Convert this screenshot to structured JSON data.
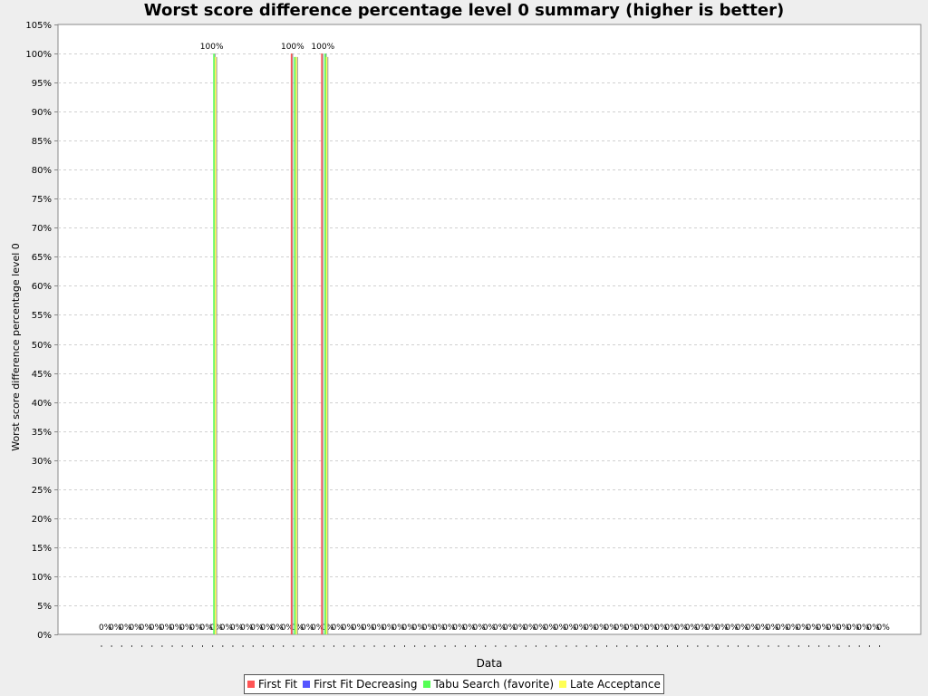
{
  "chart_data": {
    "type": "bar",
    "title": "Worst score difference percentage level 0 summary (higher is better)",
    "xlabel": "Data",
    "ylabel": "Worst score difference percentage level 0",
    "ylim": [
      0,
      105
    ],
    "y_ticks": [
      "0%",
      "5%",
      "10%",
      "15%",
      "20%",
      "25%",
      "30%",
      "35%",
      "40%",
      "45%",
      "50%",
      "55%",
      "60%",
      "65%",
      "70%",
      "75%",
      "80%",
      "85%",
      "90%",
      "95%",
      "100%",
      "105%"
    ],
    "grid": true,
    "legend_position": "bottom",
    "category_count": 78,
    "series": [
      {
        "name": "First Fit",
        "color": "#ff5555"
      },
      {
        "name": "First Fit Decreasing",
        "color": "#5555ff"
      },
      {
        "name": "Tabu Search (favorite)",
        "color": "#55ff55"
      },
      {
        "name": "Late Acceptance",
        "color": "#ffff55"
      }
    ],
    "bars": [
      {
        "category_index": 11,
        "label": "100%",
        "values": [
          0,
          0,
          100,
          99.4
        ]
      },
      {
        "category_index": 19,
        "label": "100%",
        "values": [
          100,
          0,
          99.4,
          99.4
        ]
      },
      {
        "category_index": 22,
        "label": "100%",
        "values": [
          100,
          0,
          100,
          99.4
        ]
      }
    ],
    "zero_label": "0%"
  }
}
